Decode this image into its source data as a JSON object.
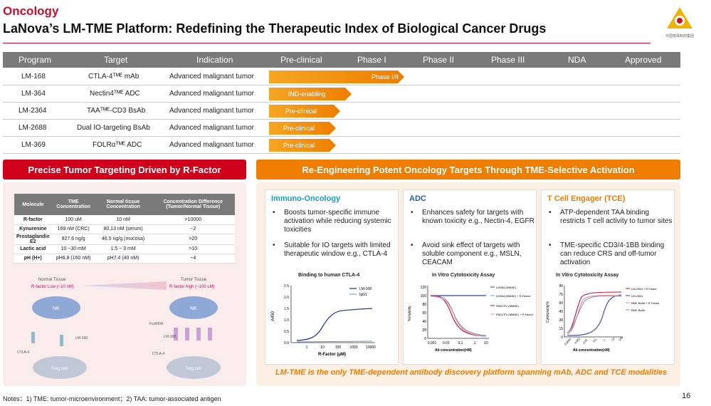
{
  "header": {
    "section": "Oncology",
    "title": "LaNova’s LM-TME Platform: Redefining the Therapeutic Index of Biological Cancer Drugs",
    "logo_text": "中国丽珠制药集团"
  },
  "pipeline": {
    "columns": [
      "Program",
      "Target",
      "Indication",
      "Pre-clinical",
      "Phase I",
      "Phase II",
      "Phase III",
      "NDA",
      "Approved"
    ],
    "rows": [
      {
        "program": "LM-168",
        "target": "CTLA-4ᵀᴹᴱ mAb",
        "indication": "Advanced malignant tumor",
        "stage": "Phase I/II",
        "progress": 0.32
      },
      {
        "program": "LM-364",
        "target": "Nectin4ᵀᴹᴱ ADC",
        "indication": "Advanced malignant tumor",
        "stage": "IND-enabling",
        "progress": 0.19
      },
      {
        "program": "LM-2364",
        "target": "TAAᵀᴹᴱ-CD3 BsAb",
        "indication": "Advanced malignant tumor",
        "stage": "Pre-clinical",
        "progress": 0.16
      },
      {
        "program": "LM-2688",
        "target": "Dual IO-targeting BsAb",
        "indication": "Advanced malignant tumor",
        "stage": "Pre-clinical",
        "progress": 0.15
      },
      {
        "program": "LM-369",
        "target": "FOLRαᵀᴹᴱ ADC",
        "indication": "Advanced malignant tumor",
        "stage": "Pre-clinical",
        "progress": 0.15
      }
    ]
  },
  "left_band": "Precise Tumor Targeting Driven by R-Factor",
  "right_band": "Re-Engineering Potent Oncology Targets Through TME-Selective Activation",
  "molecule_table": {
    "headers": [
      "Molecule",
      "TME Concentration",
      "Normal tissue Concentration",
      "Concentration Difference (Tumor/Normal Tissue)"
    ],
    "rows": [
      [
        "R-factor",
        "100 uM",
        "10 nM",
        ">10000"
      ],
      [
        "Kynurenine",
        "169 nM (CRC)",
        "80.13 nM (serum)",
        "~2"
      ],
      [
        "Prostaglandin E2",
        "927.6 ng/g",
        "46.5 ng/g (mucosa)",
        ">20"
      ],
      [
        "Lactic acid",
        "10 ~30 mM",
        "1.5 ~ 3 mM",
        ">10"
      ],
      [
        "pH (H+)",
        "pH6.8 (160 nM)",
        "pH7.4 (40 nM)",
        "~4"
      ]
    ]
  },
  "diagram": {
    "normal_label": "Normal Tissue",
    "tumor_label": "Tumor Tissue",
    "rlow": "R-factor Low (~10 nM)",
    "rhigh": "R-factor high (~100 uM)",
    "nk": "NK",
    "treg": "Treg cell",
    "ctla4": "CTLA-4",
    "lm168": "LM-168",
    "fcgr": "FcγRIIIA"
  },
  "cards": [
    {
      "title": "Immuno-Oncology",
      "color": "#17a2b8",
      "bullets": [
        "Boosts tumor-specific immune activation while reducing systemic toxicities",
        "Suitable for IO targets with limited therapeutic window e.g., CTLA-4"
      ],
      "chart": {
        "title": "Binding to human CTLA-4",
        "xlabel": "R-Factor (μM)",
        "ylabel": "A450",
        "xticks": [
          "1",
          "10",
          "100",
          "1000",
          "10000"
        ],
        "yticks": [
          "0.0",
          "0.5",
          "1.0",
          "1.5",
          "2.0",
          "2.5"
        ],
        "legend": [
          "LM-168",
          "IgG1"
        ]
      }
    },
    {
      "title": "ADC",
      "color": "#1f5fa8",
      "bullets": [
        "Enhances safety for targets with known toxicity e.g., Nectin-4, EGFR",
        "Avoid sink effect of targets with soluble component e.g., MSLN, CEACAM"
      ],
      "chart": {
        "title": "In Vitro Cytotoxicity Assay",
        "xlabel": "Ab concentration(nM)",
        "ylabel": "%Viability",
        "xticks": [
          "0.001",
          "0.01",
          "0.1",
          "1",
          "10"
        ],
        "yticks": [
          "0",
          "20",
          "40",
          "60",
          "80",
          "100",
          "120"
        ],
        "legend": [
          "LM364 (MMAE)",
          "LM364 (MMAE) + R-Factor",
          "PADCEV (MMAE)",
          "PADCEV (MMAE) + R-Factor"
        ]
      }
    },
    {
      "title": "T Cell Engager (TCE)",
      "color": "#ef7d00",
      "bullets": [
        "ATP-dependent TAA binding restricts T cell activity to tumor sites",
        "TME-specific CD3/4-1BB binding can reduce CRS and off-tumor activation"
      ],
      "chart": {
        "title": "In Vitro Cytotoxicity Assay",
        "xlabel": "Ab concentration(nM)",
        "ylabel": "Cytotoxicity%",
        "xticks": [
          "0.0001",
          "0.001",
          "0.01",
          "0.1",
          "1",
          "10",
          "100"
        ],
        "yticks": [
          "0",
          "15",
          "30",
          "45",
          "60",
          "75",
          "90"
        ],
        "legend": [
          "LM-2364 + R Factor",
          "LM-2364",
          "BMK BsAb + R Factor",
          "BMK BsAb"
        ]
      }
    }
  ],
  "tagline": "LM-TME is the only TME-dependent antibody discovery platform spanning mAb, ADC and TCE modalities",
  "notes": "Notes：1) TME: tumor-microenvironment；2) TAA: tumor-associated antigen",
  "page_number": "16"
}
